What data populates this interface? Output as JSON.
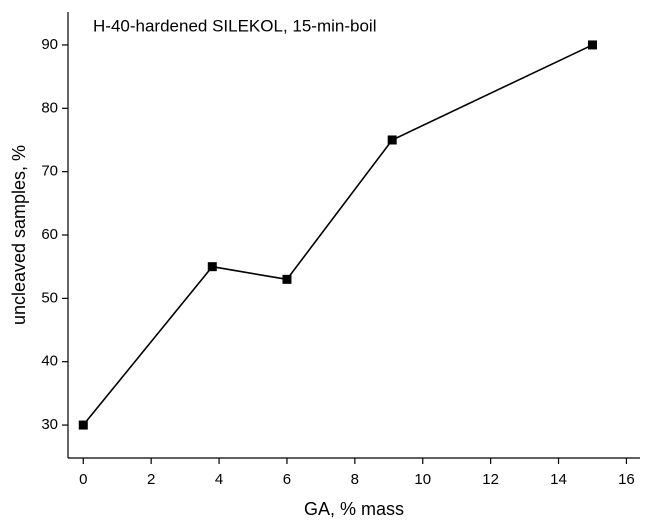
{
  "chart_data": {
    "type": "line",
    "title": "H-40-hardened SILEKOL, 15-min-boil",
    "x_label": "GA, % mass",
    "y_label": "uncleaved samples, %",
    "x": [
      0,
      3.8,
      6,
      9.1,
      15
    ],
    "series": [
      {
        "name": "H-40-hardened SILEKOL, 15-min-boil",
        "color": "#000000",
        "values": [
          30,
          55,
          53,
          75,
          90
        ]
      }
    ],
    "xlim": [
      -0.45,
      16.4
    ],
    "xticks": [
      0,
      2,
      4,
      6,
      8,
      10,
      12,
      14,
      16
    ],
    "ylim": [
      24.8,
      95.2
    ],
    "yticks": [
      30,
      40,
      50,
      60,
      70,
      80,
      90
    ],
    "grid": false,
    "marker": "square"
  }
}
